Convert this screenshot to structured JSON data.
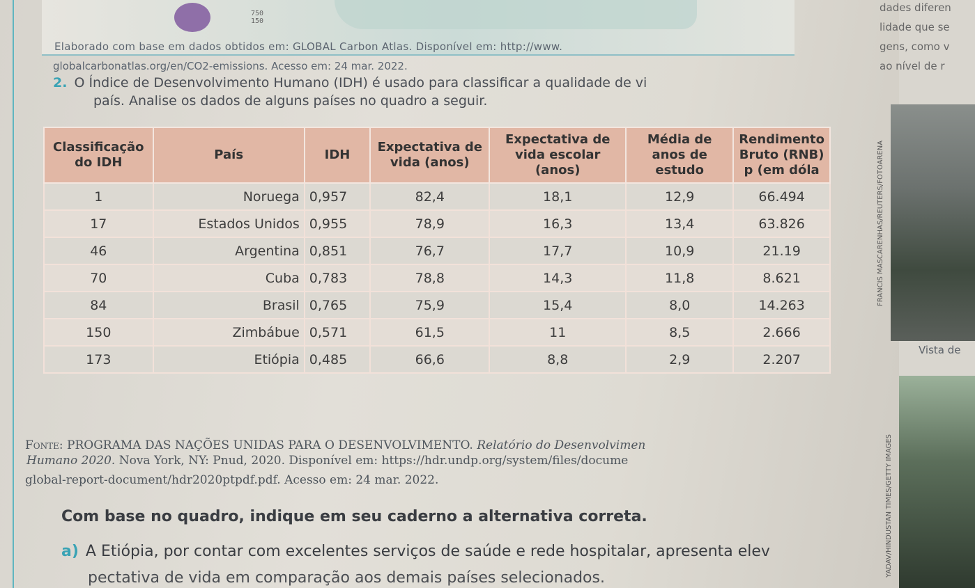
{
  "map_legend": {
    "values": [
      "750",
      "150"
    ]
  },
  "source_top": {
    "line1": "Elaborado com base em dados obtidos em: GLOBAL Carbon Atlas. Disponível em: http://www.",
    "line2": "globalcarbonatlas.org/en/CO2-emissions. Acesso em: 24 mar. 2022."
  },
  "question": {
    "number": "2.",
    "line1": "O Índice de Desenvolvimento Humano (IDH) é usado para classificar a qualidade de vi",
    "line2": "país. Analise os dados de alguns países no quadro a seguir."
  },
  "table": {
    "headers": [
      "Classificação do IDH",
      "País",
      "IDH",
      "Expectativa de vida (anos)",
      "Expectativa de vida escolar (anos)",
      "Média de anos de estudo",
      "Rendimento Bruto (RNB) p (em dóla"
    ],
    "rows": [
      [
        "1",
        "Noruega",
        "0,957",
        "82,4",
        "18,1",
        "12,9",
        "66.494"
      ],
      [
        "17",
        "Estados Unidos",
        "0,955",
        "78,9",
        "16,3",
        "13,4",
        "63.826"
      ],
      [
        "46",
        "Argentina",
        "0,851",
        "76,7",
        "17,7",
        "10,9",
        "21.19"
      ],
      [
        "70",
        "Cuba",
        "0,783",
        "78,8",
        "14,3",
        "11,8",
        "8.621"
      ],
      [
        "84",
        "Brasil",
        "0,765",
        "75,9",
        "15,4",
        "8,0",
        "14.263"
      ],
      [
        "150",
        "Zimbábue",
        "0,571",
        "61,5",
        "11",
        "8,5",
        "2.666"
      ],
      [
        "173",
        "Etiópia",
        "0,485",
        "66,6",
        "8,8",
        "2,9",
        "2.207"
      ]
    ]
  },
  "source_table": {
    "label": "Fonte: PROGRAMA DAS NAÇÕES UNIDAS PARA O DESENVOLVIMENTO.",
    "title_part": "Relatório do Desenvolvimen",
    "line2_italic": "Humano 2020.",
    "line2_rest": "Nova York, NY: Pnud, 2020. Disponível em: https://hdr.undp.org/system/files/docume",
    "line3": "global-report-document/hdr2020ptpdf.pdf. Acesso em: 24 mar. 2022."
  },
  "instruction": "Com base no quadro, indique em seu caderno a alternativa correta.",
  "option_a": {
    "letter": "a)",
    "line1": "A Etiópia, por contar com excelentes serviços de saúde e rede hospitalar, apresenta elev",
    "line2": "A Etiópia, por contar com excelentes serviços de saúde e rede hospitalar, apresenta elev",
    "line2_text": "pectativa de vida em comparação aos demais países selecionados."
  },
  "option_a_line2": "A Etiópia, por contar com excelentes serviços de saúde e rede hospitalar, apresenta elev",
  "option_a_cont": "aos demais países selecionados.",
  "cut_line": "pectativa de vida em comparação aos demais países selecionados.",
  "right_margin": {
    "text1": "dades diferen",
    "text2": "lidade que se",
    "text3": "gens, como v",
    "text4": "ao nível de r",
    "caption": "Vista de",
    "credit1": "FRANCIS MASCARENHAS/REUTERS/FOTOARENA",
    "credit2": "YADAV/HINDUSTAN TIMES/GETTY IMAGES"
  }
}
